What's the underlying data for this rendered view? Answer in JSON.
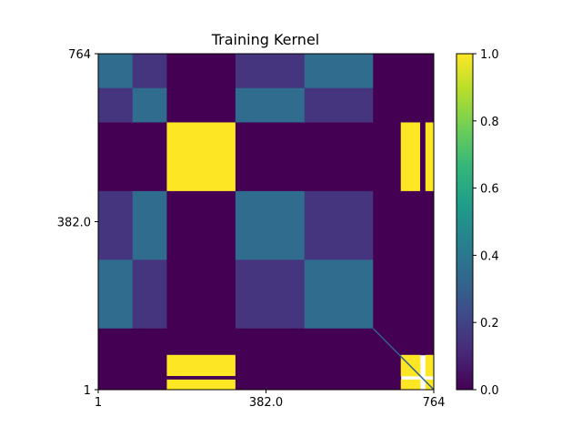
{
  "chart_data": {
    "type": "heatmap",
    "title": "Training Kernel",
    "xlabel": "",
    "ylabel": "",
    "colormap": "viridis",
    "x_ticks": [
      "1",
      "382.0",
      "764"
    ],
    "y_ticks": [
      "764",
      "382.0",
      "1"
    ],
    "xlim": [
      1,
      764
    ],
    "ylim": [
      1,
      764
    ],
    "grid": false,
    "colorbar": {
      "range": [
        0.0,
        1.0
      ],
      "ticks": [
        "0.0",
        "0.2",
        "0.4",
        "0.6",
        "0.8",
        "1.0"
      ],
      "colors": [
        "#440154",
        "#482878",
        "#3e4a89",
        "#31688e",
        "#26828e",
        "#1f9e89",
        "#35b779",
        "#6ece58",
        "#b5de2b",
        "#fde725"
      ]
    },
    "blocks": [
      {
        "x": [
          1,
          79
        ],
        "y": [
          686,
          764
        ],
        "value": 0.35
      },
      {
        "x": [
          79,
          157
        ],
        "y": [
          686,
          764
        ],
        "value": 0.15
      },
      {
        "x": [
          157,
          313
        ],
        "y": [
          686,
          764
        ],
        "value": 0.0
      },
      {
        "x": [
          313,
          470
        ],
        "y": [
          686,
          764
        ],
        "value": 0.15
      },
      {
        "x": [
          470,
          626
        ],
        "y": [
          686,
          764
        ],
        "value": 0.35
      },
      {
        "x": [
          626,
          764
        ],
        "y": [
          686,
          764
        ],
        "value": 0.0
      },
      {
        "x": [
          1,
          79
        ],
        "y": [
          608,
          686
        ],
        "value": 0.15
      },
      {
        "x": [
          79,
          157
        ],
        "y": [
          608,
          686
        ],
        "value": 0.35
      },
      {
        "x": [
          157,
          313
        ],
        "y": [
          608,
          686
        ],
        "value": 0.0
      },
      {
        "x": [
          313,
          470
        ],
        "y": [
          608,
          686
        ],
        "value": 0.35
      },
      {
        "x": [
          470,
          626
        ],
        "y": [
          608,
          686
        ],
        "value": 0.15
      },
      {
        "x": [
          626,
          764
        ],
        "y": [
          608,
          686
        ],
        "value": 0.0
      },
      {
        "x": [
          1,
          157
        ],
        "y": [
          452,
          608
        ],
        "value": 0.0
      },
      {
        "x": [
          157,
          313
        ],
        "y": [
          452,
          608
        ],
        "value": 1.0
      },
      {
        "x": [
          313,
          689
        ],
        "y": [
          452,
          608
        ],
        "value": 0.0
      },
      {
        "x": [
          689,
          733
        ],
        "y": [
          452,
          608
        ],
        "value": 1.0
      },
      {
        "x": [
          733,
          745
        ],
        "y": [
          452,
          608
        ],
        "value": 0.0
      },
      {
        "x": [
          745,
          764
        ],
        "y": [
          452,
          608
        ],
        "value": 1.0
      },
      {
        "x": [
          1,
          79
        ],
        "y": [
          296,
          452
        ],
        "value": 0.15
      },
      {
        "x": [
          79,
          157
        ],
        "y": [
          296,
          452
        ],
        "value": 0.35
      },
      {
        "x": [
          157,
          313
        ],
        "y": [
          296,
          452
        ],
        "value": 0.0
      },
      {
        "x": [
          313,
          470
        ],
        "y": [
          296,
          452
        ],
        "value": 0.35
      },
      {
        "x": [
          470,
          626
        ],
        "y": [
          296,
          452
        ],
        "value": 0.15
      },
      {
        "x": [
          626,
          764
        ],
        "y": [
          296,
          452
        ],
        "value": 0.0
      },
      {
        "x": [
          1,
          79
        ],
        "y": [
          140,
          296
        ],
        "value": 0.35
      },
      {
        "x": [
          79,
          157
        ],
        "y": [
          140,
          296
        ],
        "value": 0.15
      },
      {
        "x": [
          157,
          313
        ],
        "y": [
          140,
          296
        ],
        "value": 0.0
      },
      {
        "x": [
          313,
          470
        ],
        "y": [
          140,
          296
        ],
        "value": 0.15
      },
      {
        "x": [
          470,
          626
        ],
        "y": [
          140,
          296
        ],
        "value": 0.35
      },
      {
        "x": [
          626,
          764
        ],
        "y": [
          140,
          296
        ],
        "value": 0.0
      },
      {
        "x": [
          1,
          764
        ],
        "y": [
          80,
          140
        ],
        "value": 0.0
      },
      {
        "x": [
          1,
          157
        ],
        "y": [
          1,
          80
        ],
        "value": 0.0
      },
      {
        "x": [
          157,
          313
        ],
        "y": [
          32,
          80
        ],
        "value": 1.0
      },
      {
        "x": [
          157,
          313
        ],
        "y": [
          24,
          32
        ],
        "value": 0.0
      },
      {
        "x": [
          157,
          313
        ],
        "y": [
          1,
          24
        ],
        "value": 1.0
      },
      {
        "x": [
          313,
          689
        ],
        "y": [
          1,
          80
        ],
        "value": 0.0
      },
      {
        "x": [
          689,
          733
        ],
        "y": [
          32,
          80
        ],
        "value": 1.0
      },
      {
        "x": [
          689,
          733
        ],
        "y": [
          1,
          24
        ],
        "value": 1.0
      },
      {
        "x": [
          745,
          764
        ],
        "y": [
          32,
          80
        ],
        "value": 1.0
      },
      {
        "x": [
          745,
          764
        ],
        "y": [
          1,
          24
        ],
        "value": 1.0
      }
    ],
    "diagonal": {
      "from": [
        626,
        140
      ],
      "to": [
        764,
        1
      ],
      "value": 0.3
    }
  }
}
